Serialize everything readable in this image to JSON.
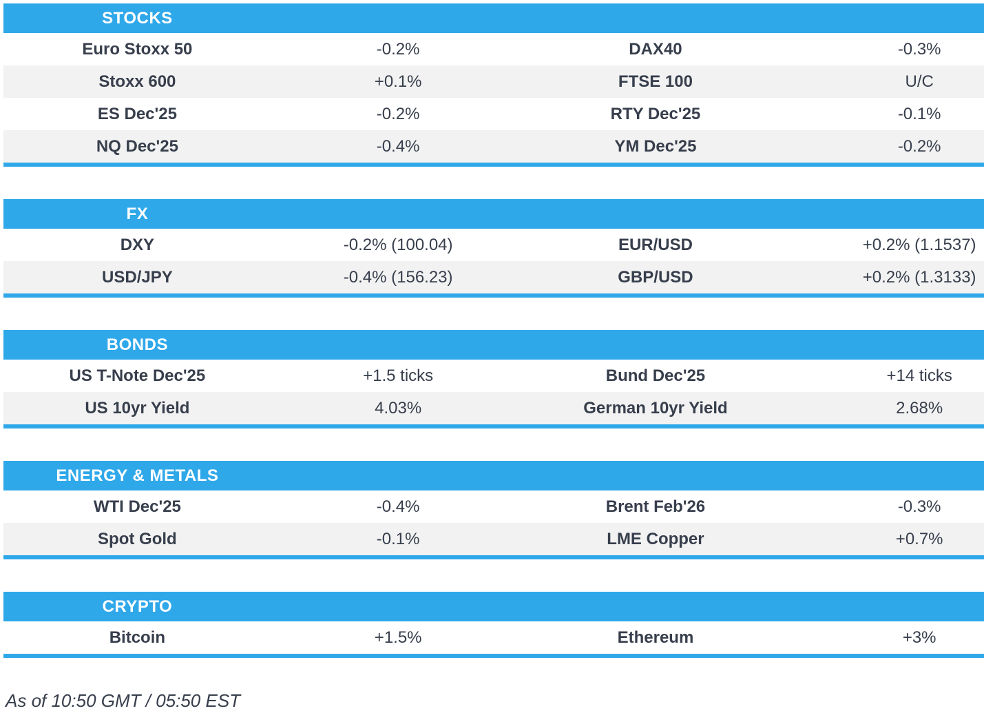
{
  "theme": {
    "accent_blue": "#2FA8EA",
    "row_alt_gray": "#F2F2F2",
    "text_color": "#373E4C",
    "header_text_color": "#FFFFFF"
  },
  "sections": [
    {
      "title": "STOCKS",
      "rows": [
        {
          "l1": "Euro Stoxx 50",
          "v1": "-0.2%",
          "l2": "DAX40",
          "v2": "-0.3%"
        },
        {
          "l1": "Stoxx 600",
          "v1": "+0.1%",
          "l2": "FTSE 100",
          "v2": "U/C"
        },
        {
          "l1": "ES Dec'25",
          "v1": "-0.2%",
          "l2": "RTY Dec'25",
          "v2": "-0.1%"
        },
        {
          "l1": "NQ Dec'25",
          "v1": "-0.4%",
          "l2": "YM Dec'25",
          "v2": "-0.2%"
        }
      ]
    },
    {
      "title": "FX",
      "rows": [
        {
          "l1": "DXY",
          "v1": "-0.2% (100.04)",
          "l2": "EUR/USD",
          "v2": "+0.2% (1.1537)"
        },
        {
          "l1": "USD/JPY",
          "v1": "-0.4% (156.23)",
          "l2": "GBP/USD",
          "v2": "+0.2% (1.3133)"
        }
      ]
    },
    {
      "title": "BONDS",
      "rows": [
        {
          "l1": "US T-Note Dec'25",
          "v1": "+1.5 ticks",
          "l2": "Bund Dec'25",
          "v2": "+14 ticks"
        },
        {
          "l1": "US 10yr Yield",
          "v1": "4.03%",
          "l2": "German 10yr Yield",
          "v2": "2.68%"
        }
      ]
    },
    {
      "title": "ENERGY & METALS",
      "rows": [
        {
          "l1": "WTI Dec'25",
          "v1": "-0.4%",
          "l2": "Brent Feb'26",
          "v2": "-0.3%"
        },
        {
          "l1": "Spot Gold",
          "v1": "-0.1%",
          "l2": "LME Copper",
          "v2": "+0.7%"
        }
      ]
    },
    {
      "title": "CRYPTO",
      "rows": [
        {
          "l1": "Bitcoin",
          "v1": "+1.5%",
          "l2": "Ethereum",
          "v2": "+3%"
        }
      ]
    }
  ],
  "footer": {
    "as_of": "As of 10:50 GMT / 05:50 EST"
  }
}
